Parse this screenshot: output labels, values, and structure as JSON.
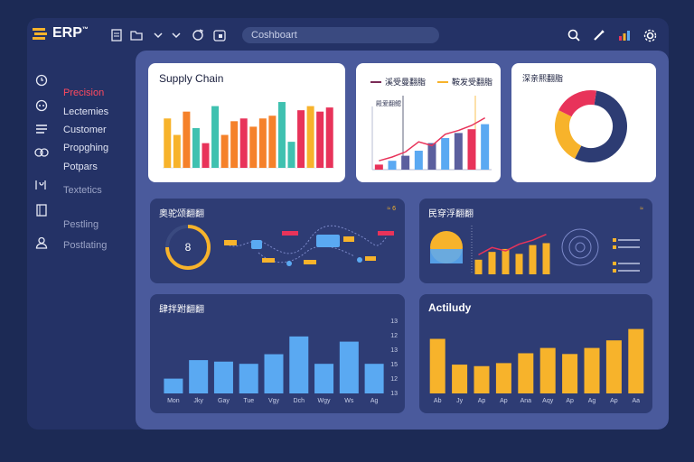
{
  "header": {
    "logo_text": "ERP",
    "logo_sup": "™",
    "search_placeholder": "Coshboart",
    "icons": [
      "document-icon",
      "folder-icon",
      "chevron-down-icon",
      "chevron-down-icon",
      "refresh-icon",
      "calendar-icon",
      "search-icon",
      "pen-icon",
      "bar-chart-icon",
      "settings-icon"
    ]
  },
  "sidebar": {
    "items": [
      {
        "label": "Precision",
        "icon": "clock-icon",
        "state": "active"
      },
      {
        "label": "Lectemies",
        "icon": "chat-icon",
        "state": "normal"
      },
      {
        "label": "Customer",
        "icon": "list-icon",
        "state": "normal"
      },
      {
        "label": "Propghing",
        "icon": "link-icon",
        "state": "normal"
      },
      {
        "label": "Potpars",
        "icon": "",
        "state": "normal"
      },
      {
        "label": "Textetics",
        "icon": "graph-icon",
        "state": "dim"
      },
      {
        "label": "Pestling",
        "icon": "book-icon",
        "state": "dim"
      },
      {
        "label": "Postlating",
        "icon": "user-icon",
        "state": "dim"
      }
    ]
  },
  "cards": {
    "supply_chain": {
      "title": "Supply Chain"
    },
    "trend": {
      "legend_a": "溪受曼翻脂",
      "legend_b": "鞍发受翻脂",
      "inner_label": "殿爱翻鳃"
    },
    "donut": {
      "title": "深亲熙翻脂"
    },
    "network": {
      "title": "奥驼颂翻翻",
      "badge": "8",
      "corner": "≈ 6"
    },
    "growth": {
      "title": "民穿浮翻翻",
      "corner": "≈"
    },
    "monthly": {
      "title": "肆拌跗翻翻"
    },
    "activity": {
      "title": "Actiludy"
    }
  },
  "colors": {
    "yellow": "#f7b32b",
    "red": "#e8335a",
    "teal": "#3fc1b0",
    "orange": "#f5812a",
    "navy": "#2d3c73",
    "blue": "#5aa9f2",
    "purple": "#5b5f9e"
  },
  "chart_data": [
    {
      "type": "bar",
      "title": "Supply Chain",
      "values": [
        72,
        48,
        82,
        58,
        36,
        90,
        48,
        68,
        72,
        60,
        72,
        76,
        96,
        38,
        84,
        90,
        82,
        88
      ],
      "colors": [
        "#f7b32b",
        "#f7b32b",
        "#f5812a",
        "#3fc1b0",
        "#e8335a",
        "#3fc1b0",
        "#f5812a",
        "#f5812a",
        "#e8335a",
        "#f5812a",
        "#f5812a",
        "#f5812a",
        "#3fc1b0",
        "#3fc1b0",
        "#e8335a",
        "#f7b32b",
        "#e8335a",
        "#e8335a"
      ],
      "ylim": [
        0,
        100
      ]
    },
    {
      "type": "bar",
      "values": [
        8,
        14,
        22,
        30,
        42,
        50,
        58,
        64,
        72
      ],
      "colors": [
        "#e8335a",
        "#5aa9f2",
        "#5b5f9e",
        "#5aa9f2",
        "#5b5f9e",
        "#5aa9f2",
        "#5b5f9e",
        "#e8335a",
        "#5aa9f2"
      ],
      "line": [
        14,
        20,
        28,
        44,
        38,
        56,
        62,
        70,
        82
      ],
      "ylim": [
        0,
        100
      ]
    },
    {
      "type": "pie",
      "values": [
        55,
        25,
        20
      ],
      "colors": [
        "#2d3c73",
        "#f7b32b",
        "#e8335a"
      ]
    },
    {
      "type": "bar",
      "values": [
        30,
        46,
        52,
        42,
        60,
        64
      ],
      "line": [
        40,
        55,
        48,
        62,
        70,
        82
      ],
      "ylim": [
        0,
        100
      ]
    },
    {
      "type": "bar",
      "categories": [
        "Mon",
        "Jky",
        "Gay",
        "Tue",
        "Vgy",
        "Dch",
        "Wgy",
        "Ws",
        "Ag"
      ],
      "values": [
        20,
        45,
        43,
        40,
        53,
        77,
        40,
        70,
        40
      ],
      "ylim": [
        0,
        100
      ]
    },
    {
      "type": "bar",
      "title": "Actiludy",
      "categories": [
        "Ab",
        "Jy",
        "Ap",
        "Ap",
        "Ana",
        "Aqy",
        "Ap",
        "Ag",
        "Ap",
        "Aa"
      ],
      "values": [
        72,
        38,
        36,
        40,
        53,
        60,
        52,
        60,
        70,
        85
      ],
      "ylim": [
        0,
        100
      ]
    }
  ]
}
